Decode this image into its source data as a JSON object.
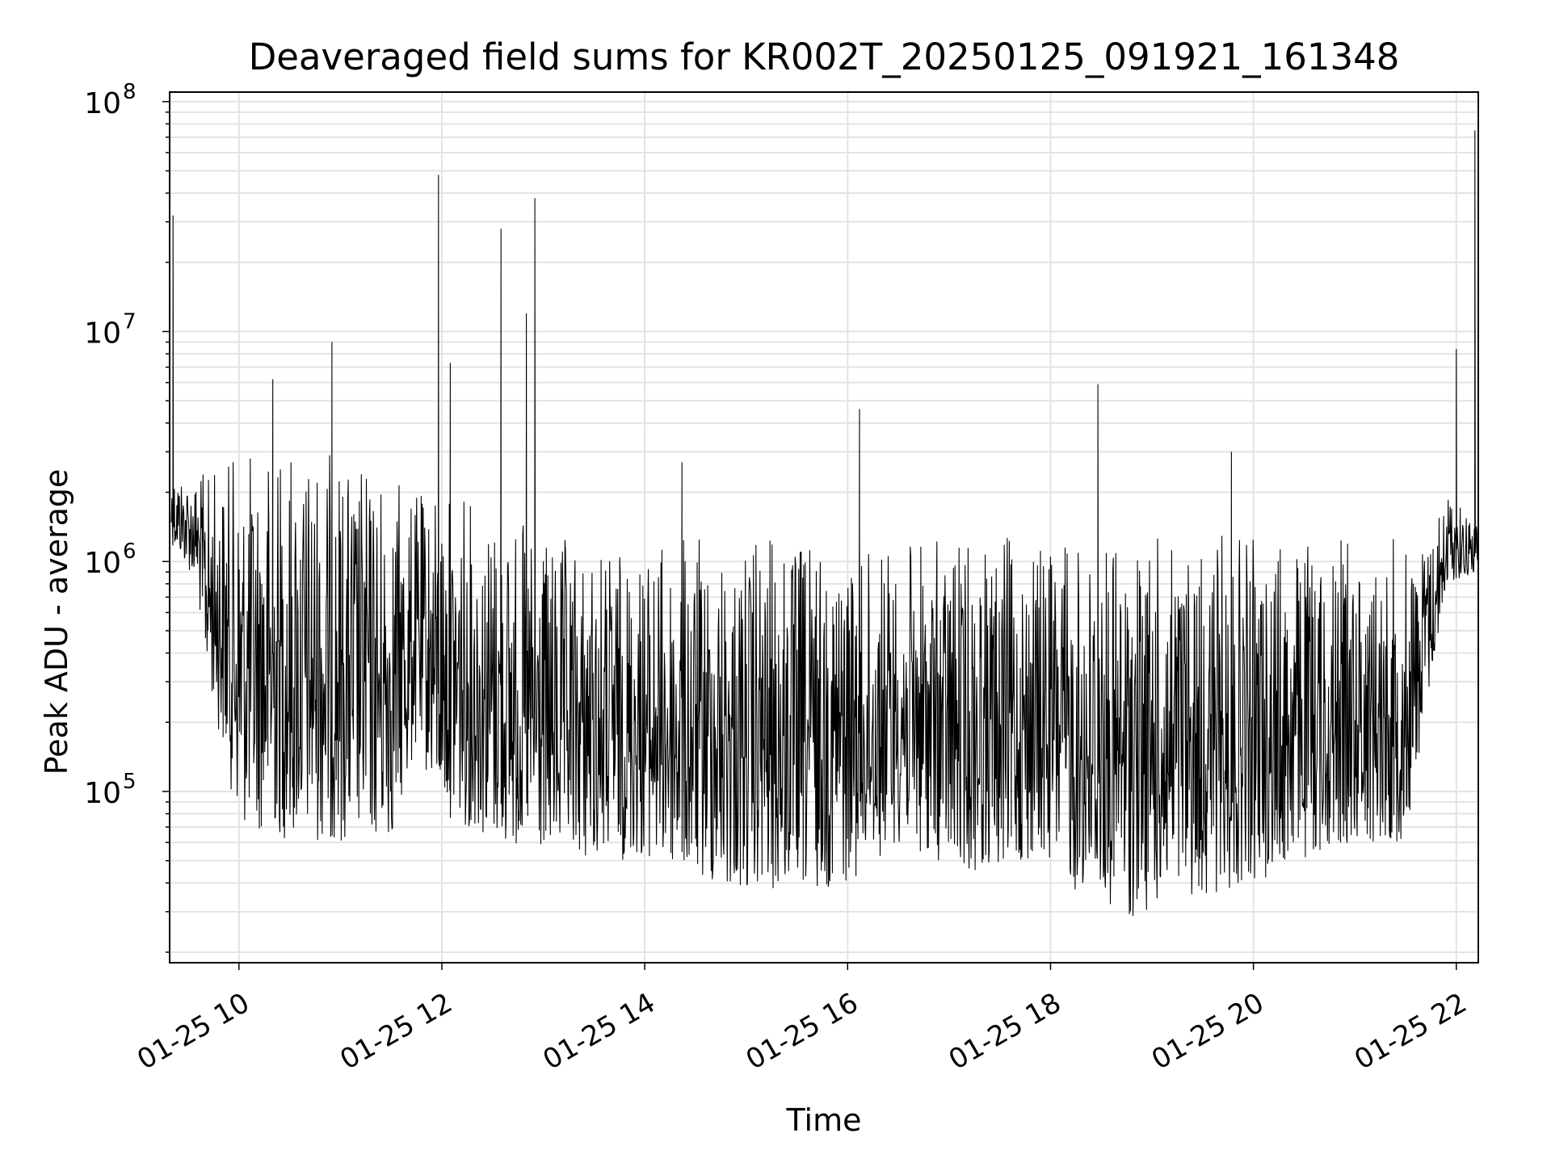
{
  "chart_data": {
    "type": "line",
    "title": "Deaveraged field sums for KR002T_20250125_091921_161348",
    "xlabel": "Time",
    "ylabel": "Peak ADU - average",
    "yscale": "log",
    "ylim": [
      18000,
      110000000
    ],
    "xlim": [
      "2025-01-25 09:19",
      "2025-01-25 22:13"
    ],
    "grid": true,
    "x_ticks": [
      {
        "value": "2025-01-25 10:00",
        "label": "01-25 10"
      },
      {
        "value": "2025-01-25 12:00",
        "label": "01-25 12"
      },
      {
        "value": "2025-01-25 14:00",
        "label": "01-25 14"
      },
      {
        "value": "2025-01-25 16:00",
        "label": "01-25 16"
      },
      {
        "value": "2025-01-25 18:00",
        "label": "01-25 18"
      },
      {
        "value": "2025-01-25 20:00",
        "label": "01-25 20"
      },
      {
        "value": "2025-01-25 22:00",
        "label": "01-25 22"
      }
    ],
    "y_ticks": [
      {
        "value": 100000,
        "base": "10",
        "exp": "5"
      },
      {
        "value": 1000000,
        "base": "10",
        "exp": "6"
      },
      {
        "value": 10000000,
        "base": "10",
        "exp": "7"
      },
      {
        "value": 100000000,
        "base": "10",
        "exp": "8"
      }
    ],
    "series": [
      {
        "color": "#000000",
        "envelope": [
          {
            "t": "2025-01-25 09:20",
            "lo": 1200000,
            "hi": 2600000
          },
          {
            "t": "2025-01-25 09:35",
            "lo": 800000,
            "hi": 2400000
          },
          {
            "t": "2025-01-25 09:40",
            "lo": 350000,
            "hi": 2500000
          },
          {
            "t": "2025-01-25 10:00",
            "lo": 70000,
            "hi": 3000000
          },
          {
            "t": "2025-01-25 10:30",
            "lo": 60000,
            "hi": 3500000
          },
          {
            "t": "2025-01-25 11:00",
            "lo": 60000,
            "hi": 3000000
          },
          {
            "t": "2025-01-25 11:30",
            "lo": 60000,
            "hi": 2500000
          },
          {
            "t": "2025-01-25 11:45",
            "lo": 150000,
            "hi": 2000000
          },
          {
            "t": "2025-01-25 12:00",
            "lo": 80000,
            "hi": 2200000
          },
          {
            "t": "2025-01-25 12:30",
            "lo": 60000,
            "hi": 1800000
          },
          {
            "t": "2025-01-25 13:00",
            "lo": 50000,
            "hi": 1300000
          },
          {
            "t": "2025-01-25 13:30",
            "lo": 50000,
            "hi": 1200000
          },
          {
            "t": "2025-01-25 14:00",
            "lo": 50000,
            "hi": 1200000
          },
          {
            "t": "2025-01-25 14:30",
            "lo": 40000,
            "hi": 1300000
          },
          {
            "t": "2025-01-25 15:00",
            "lo": 35000,
            "hi": 1300000
          },
          {
            "t": "2025-01-25 15:30",
            "lo": 35000,
            "hi": 1300000
          },
          {
            "t": "2025-01-25 16:00",
            "lo": 40000,
            "hi": 1300000
          },
          {
            "t": "2025-01-25 16:30",
            "lo": 60000,
            "hi": 1200000
          },
          {
            "t": "2025-01-25 17:00",
            "lo": 45000,
            "hi": 1300000
          },
          {
            "t": "2025-01-25 17:30",
            "lo": 45000,
            "hi": 1300000
          },
          {
            "t": "2025-01-25 18:00",
            "lo": 50000,
            "hi": 1300000
          },
          {
            "t": "2025-01-25 18:15",
            "lo": 35000,
            "hi": 1300000
          },
          {
            "t": "2025-01-25 18:45",
            "lo": 28000,
            "hi": 1300000
          },
          {
            "t": "2025-01-25 19:30",
            "lo": 35000,
            "hi": 1300000
          },
          {
            "t": "2025-01-25 20:00",
            "lo": 40000,
            "hi": 1300000
          },
          {
            "t": "2025-01-25 20:30",
            "lo": 50000,
            "hi": 1300000
          },
          {
            "t": "2025-01-25 21:00",
            "lo": 60000,
            "hi": 1300000
          },
          {
            "t": "2025-01-25 21:30",
            "lo": 60000,
            "hi": 1300000
          },
          {
            "t": "2025-01-25 21:45",
            "lo": 300000,
            "hi": 1400000
          },
          {
            "t": "2025-01-25 21:55",
            "lo": 800000,
            "hi": 2100000
          },
          {
            "t": "2025-01-25 22:13",
            "lo": 900000,
            "hi": 1500000
          }
        ],
        "spikes": [
          {
            "t": "2025-01-25 09:21",
            "y": 32000000
          },
          {
            "t": "2025-01-25 10:20",
            "y": 6200000
          },
          {
            "t": "2025-01-25 10:55",
            "y": 9000000
          },
          {
            "t": "2025-01-25 11:58",
            "y": 48000000
          },
          {
            "t": "2025-01-25 12:05",
            "y": 7300000
          },
          {
            "t": "2025-01-25 12:35",
            "y": 28000000
          },
          {
            "t": "2025-01-25 12:50",
            "y": 12000000
          },
          {
            "t": "2025-01-25 12:55",
            "y": 38000000
          },
          {
            "t": "2025-01-25 14:22",
            "y": 2700000
          },
          {
            "t": "2025-01-25 16:07",
            "y": 4600000
          },
          {
            "t": "2025-01-25 18:28",
            "y": 5900000
          },
          {
            "t": "2025-01-25 19:47",
            "y": 3000000
          },
          {
            "t": "2025-01-25 22:00",
            "y": 8400000
          },
          {
            "t": "2025-01-25 22:11",
            "y": 75000000
          }
        ]
      }
    ]
  }
}
